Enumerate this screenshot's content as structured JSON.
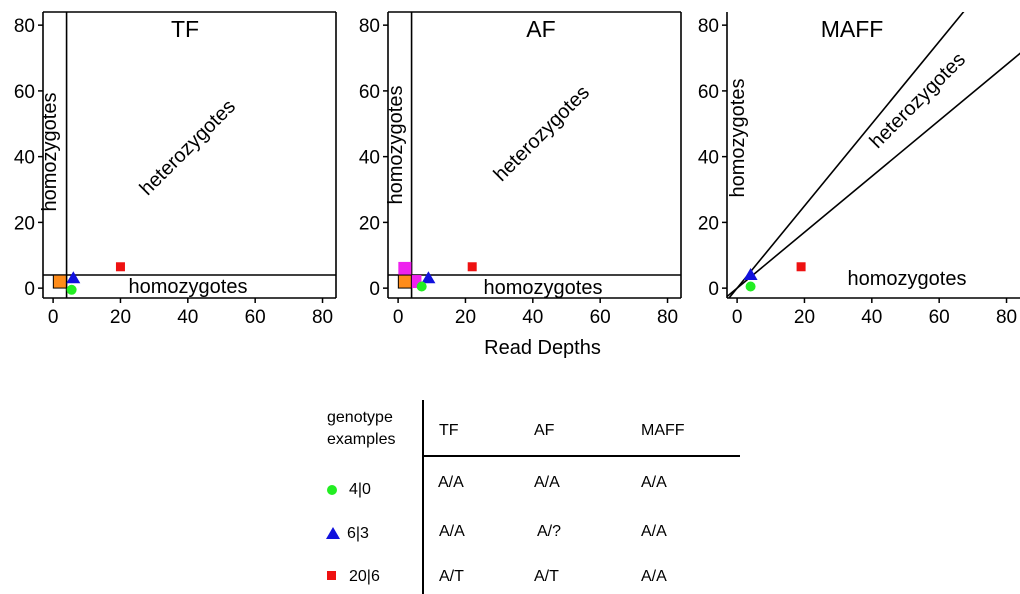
{
  "colors": {
    "green": "#22ee22",
    "blue": "#1111dd",
    "red": "#ee1111",
    "orange": "#ff8c1a",
    "magenta": "#ee22ee",
    "axis": "#000000"
  },
  "chart_data": [
    {
      "type": "scatter",
      "title": "TF",
      "xlabel": "",
      "ylabel": "",
      "xlim": [
        -3,
        84
      ],
      "ylim": [
        -3,
        84
      ],
      "xticks": [
        "0",
        "20",
        "40",
        "60",
        "80"
      ],
      "yticks": [
        "0",
        "20",
        "40",
        "60",
        "80"
      ],
      "thresholds": [
        {
          "type": "vline",
          "x": 4
        },
        {
          "type": "hline",
          "y": 4
        }
      ],
      "regions": [
        {
          "label": "homozygotes",
          "orientation": "vertical"
        },
        {
          "label": "heterozygotes",
          "orientation": "diagonal"
        },
        {
          "label": "homozygotes",
          "orientation": "horizontal"
        }
      ],
      "series": [
        {
          "marker": "square",
          "color": "orange",
          "x": [
            2
          ],
          "y": [
            2
          ]
        },
        {
          "marker": "triangle",
          "color": "blue",
          "x": [
            6
          ],
          "y": [
            3
          ]
        },
        {
          "marker": "circle",
          "color": "green",
          "x": [
            5.5
          ],
          "y": [
            -0.5
          ]
        },
        {
          "marker": "square",
          "color": "red",
          "x": [
            20
          ],
          "y": [
            6.5
          ]
        }
      ]
    },
    {
      "type": "scatter",
      "title": "AF",
      "xlabel": "Read Depths",
      "ylabel": "",
      "xlim": [
        -3,
        84
      ],
      "ylim": [
        -3,
        84
      ],
      "xticks": [
        "0",
        "20",
        "40",
        "60",
        "80"
      ],
      "yticks": [
        "0",
        "20",
        "40",
        "60",
        "80"
      ],
      "thresholds": [
        {
          "type": "vline",
          "x": 4
        },
        {
          "type": "hline",
          "y": 4
        }
      ],
      "regions": [
        {
          "label": "homozygotes",
          "orientation": "vertical"
        },
        {
          "label": "heterozygotes",
          "orientation": "diagonal"
        },
        {
          "label": "homozygotes",
          "orientation": "horizontal"
        }
      ],
      "series": [
        {
          "marker": "square",
          "color": "magenta",
          "x": [
            2,
            5
          ],
          "y": [
            6,
            2
          ]
        },
        {
          "marker": "square",
          "color": "orange",
          "x": [
            2
          ],
          "y": [
            2
          ]
        },
        {
          "marker": "triangle",
          "color": "blue",
          "x": [
            9
          ],
          "y": [
            3
          ]
        },
        {
          "marker": "circle",
          "color": "green",
          "x": [
            7
          ],
          "y": [
            0.5
          ]
        },
        {
          "marker": "square",
          "color": "red",
          "x": [
            22
          ],
          "y": [
            6.5
          ]
        }
      ]
    },
    {
      "type": "scatter",
      "title": "MAFF",
      "xlabel": "",
      "ylabel": "",
      "xlim": [
        -3,
        84
      ],
      "ylim": [
        -3,
        84
      ],
      "xticks": [
        "0",
        "20",
        "40",
        "60",
        "80"
      ],
      "yticks": [
        "0",
        "20",
        "40",
        "60",
        "80"
      ],
      "thresholds": [
        {
          "type": "slope",
          "slope": 1.25
        },
        {
          "type": "slope",
          "slope": 0.85
        }
      ],
      "regions": [
        {
          "label": "homozygotes",
          "orientation": "vertical"
        },
        {
          "label": "heterozygotes",
          "orientation": "diagonal"
        },
        {
          "label": "homozygotes",
          "orientation": "horizontal"
        }
      ],
      "series": [
        {
          "marker": "triangle",
          "color": "blue",
          "x": [
            4
          ],
          "y": [
            4
          ]
        },
        {
          "marker": "circle",
          "color": "green",
          "x": [
            4
          ],
          "y": [
            0.5
          ]
        },
        {
          "marker": "square",
          "color": "red",
          "x": [
            19
          ],
          "y": [
            6.5
          ]
        }
      ]
    }
  ],
  "legend_table": {
    "header_line1": "genotype",
    "header_line2": "examples",
    "columns": [
      "TF",
      "AF",
      "MAFF"
    ],
    "rows": [
      {
        "marker": "circle",
        "color": "green",
        "label": "4|0",
        "values": [
          "A/A",
          "A/A",
          "A/A"
        ]
      },
      {
        "marker": "triangle",
        "color": "blue",
        "label": "6|3",
        "values": [
          "A/A",
          "A/?",
          "A/A"
        ]
      },
      {
        "marker": "square",
        "color": "red",
        "label": "20|6",
        "values": [
          "A/T",
          "A/T",
          "A/A"
        ]
      }
    ]
  }
}
